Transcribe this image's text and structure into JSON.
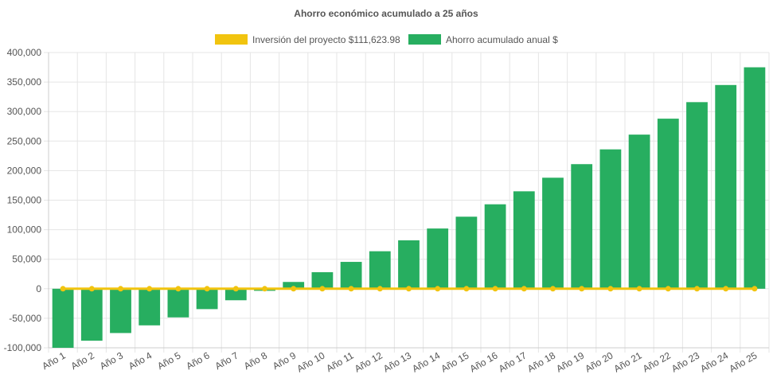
{
  "chart_data": {
    "type": "bar",
    "title": "Ahorro económico acumulado a 25 años",
    "categories": [
      "Año 1",
      "Año 2",
      "Año 3",
      "Año 4",
      "Año 5",
      "Año 6",
      "Año 7",
      "Año 8",
      "Año 9",
      "Año 10",
      "Año 11",
      "Año 12",
      "Año 13",
      "Año 14",
      "Año 15",
      "Año 16",
      "Año 17",
      "Año 18",
      "Año 19",
      "Año 20",
      "Año 21",
      "Año 22",
      "Año 23",
      "Año 24",
      "Año 25"
    ],
    "series": [
      {
        "name": "Inversión del proyecto $111,623.98",
        "type": "line",
        "color": "#f1c40f",
        "values": [
          0,
          0,
          0,
          0,
          0,
          0,
          0,
          0,
          0,
          0,
          0,
          0,
          0,
          0,
          0,
          0,
          0,
          0,
          0,
          0,
          0,
          0,
          0,
          0,
          0
        ]
      },
      {
        "name": "Ahorro acumulado anual $",
        "type": "bar",
        "color": "#27ae60",
        "values": [
          -100000,
          -88000,
          -75000,
          -62000,
          -48500,
          -34500,
          -19500,
          -3500,
          11500,
          28000,
          45500,
          63500,
          82000,
          102000,
          122000,
          143000,
          165000,
          188000,
          211000,
          236000,
          261000,
          288000,
          316000,
          345000,
          375000
        ]
      }
    ],
    "ylim": [
      -100000,
      400000
    ],
    "yticks": [
      "400,000",
      "350,000",
      "300,000",
      "250,000",
      "200,000",
      "150,000",
      "100,000",
      "50,000",
      "0",
      "-50,000",
      "-100,000"
    ],
    "ytick_values": [
      400000,
      350000,
      300000,
      250000,
      200000,
      150000,
      100000,
      50000,
      0,
      -50000,
      -100000
    ],
    "legend_position": "top",
    "grid": true
  }
}
